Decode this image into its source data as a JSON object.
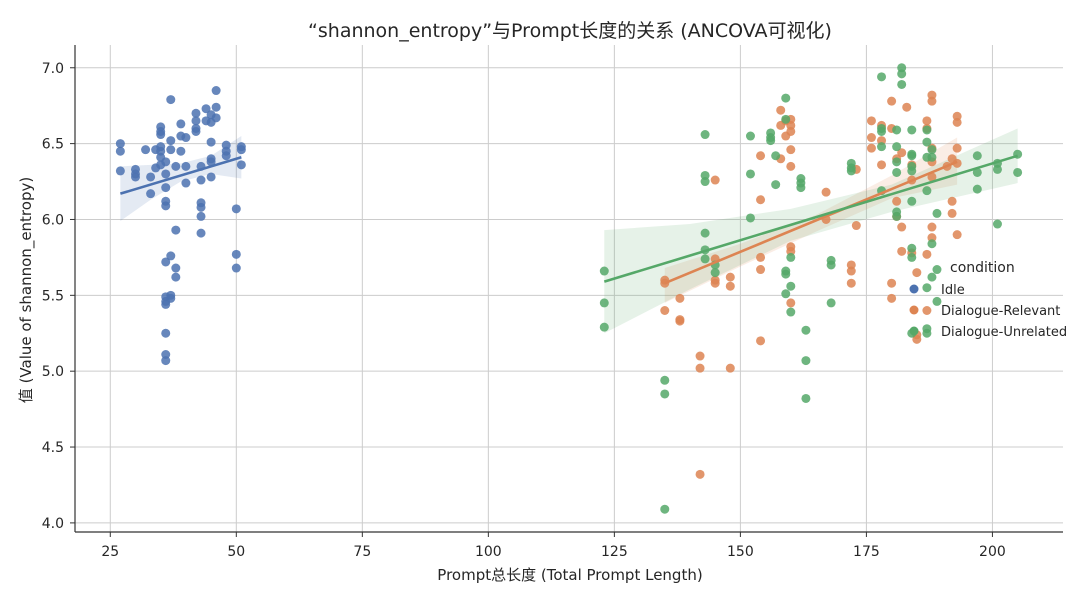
{
  "chart_data": {
    "type": "scatter",
    "title": "“shannon_entropy”与Prompt长度的关系 (ANCOVA可视化)",
    "xlabel": "Prompt总长度 (Total Prompt Length)",
    "ylabel": "值 (Value of shannon_entropy)",
    "xlim": [
      18,
      214
    ],
    "ylim": [
      3.94,
      7.15
    ],
    "x_ticks": [
      25,
      50,
      75,
      100,
      125,
      150,
      175,
      200
    ],
    "y_ticks": [
      4.0,
      4.5,
      5.0,
      5.5,
      6.0,
      6.5,
      7.0
    ],
    "grid": true,
    "legend": {
      "title": "condition",
      "placement": "center-right"
    },
    "series": [
      {
        "name": "Idle",
        "color": "#4c72b0",
        "fit": {
          "x": [
            27,
            51
          ],
          "y": [
            6.17,
            6.41
          ]
        },
        "ci": {
          "x": [
            27,
            33,
            39,
            45,
            51
          ],
          "upper": [
            6.35,
            6.36,
            6.37,
            6.42,
            6.55
          ],
          "lower": [
            5.99,
            6.13,
            6.25,
            6.3,
            6.27
          ]
        },
        "points": [
          [
            27,
            6.5
          ],
          [
            27,
            6.45
          ],
          [
            27,
            6.32
          ],
          [
            30,
            6.33
          ],
          [
            30,
            6.28
          ],
          [
            30,
            6.3
          ],
          [
            32,
            6.46
          ],
          [
            33,
            6.17
          ],
          [
            33,
            6.28
          ],
          [
            34,
            6.46
          ],
          [
            34,
            6.34
          ],
          [
            35,
            6.45
          ],
          [
            35,
            6.41
          ],
          [
            35,
            6.36
          ],
          [
            35,
            6.61
          ],
          [
            35,
            6.58
          ],
          [
            35,
            6.56
          ],
          [
            35,
            6.48
          ],
          [
            36,
            6.38
          ],
          [
            36,
            6.3
          ],
          [
            36,
            6.21
          ],
          [
            36,
            6.12
          ],
          [
            36,
            6.09
          ],
          [
            36,
            5.72
          ],
          [
            36,
            5.49
          ],
          [
            36,
            5.46
          ],
          [
            36,
            5.44
          ],
          [
            36,
            5.25
          ],
          [
            36,
            5.11
          ],
          [
            36,
            5.07
          ],
          [
            37,
            6.79
          ],
          [
            37,
            6.52
          ],
          [
            37,
            6.46
          ],
          [
            37,
            5.76
          ],
          [
            37,
            5.5
          ],
          [
            37,
            5.48
          ],
          [
            38,
            6.35
          ],
          [
            38,
            5.93
          ],
          [
            38,
            5.68
          ],
          [
            38,
            5.62
          ],
          [
            39,
            6.63
          ],
          [
            39,
            6.55
          ],
          [
            39,
            6.45
          ],
          [
            40,
            6.54
          ],
          [
            40,
            6.35
          ],
          [
            40,
            6.24
          ],
          [
            42,
            6.7
          ],
          [
            42,
            6.65
          ],
          [
            42,
            6.6
          ],
          [
            42,
            6.58
          ],
          [
            43,
            6.35
          ],
          [
            43,
            6.26
          ],
          [
            43,
            6.11
          ],
          [
            43,
            6.08
          ],
          [
            43,
            6.02
          ],
          [
            43,
            5.91
          ],
          [
            44,
            6.73
          ],
          [
            44,
            6.65
          ],
          [
            45,
            6.69
          ],
          [
            45,
            6.64
          ],
          [
            45,
            6.51
          ],
          [
            45,
            6.4
          ],
          [
            45,
            6.38
          ],
          [
            45,
            6.28
          ],
          [
            46,
            6.85
          ],
          [
            46,
            6.74
          ],
          [
            46,
            6.67
          ],
          [
            48,
            6.49
          ],
          [
            48,
            6.45
          ],
          [
            48,
            6.42
          ],
          [
            50,
            6.07
          ],
          [
            50,
            5.77
          ],
          [
            50,
            5.68
          ],
          [
            51,
            6.48
          ],
          [
            51,
            6.46
          ],
          [
            51,
            6.36
          ]
        ]
      },
      {
        "name": "Dialogue-Relevant",
        "color": "#dd8452",
        "fit": {
          "x": [
            135,
            193
          ],
          "y": [
            5.58,
            6.38
          ]
        },
        "ci": {
          "x": [
            135,
            150,
            165,
            180,
            193
          ],
          "upper": [
            5.68,
            5.84,
            6.03,
            6.29,
            6.54
          ],
          "lower": [
            5.45,
            5.69,
            5.92,
            6.14,
            6.23
          ]
        },
        "points": [
          [
            135,
            5.4
          ],
          [
            135,
            5.6
          ],
          [
            135,
            5.58
          ],
          [
            138,
            5.48
          ],
          [
            138,
            5.34
          ],
          [
            138,
            5.33
          ],
          [
            142,
            5.1
          ],
          [
            142,
            5.02
          ],
          [
            142,
            4.32
          ],
          [
            145,
            6.26
          ],
          [
            145,
            5.74
          ],
          [
            145,
            5.6
          ],
          [
            145,
            5.58
          ],
          [
            148,
            5.62
          ],
          [
            148,
            5.56
          ],
          [
            148,
            5.02
          ],
          [
            154,
            6.42
          ],
          [
            154,
            6.13
          ],
          [
            154,
            5.75
          ],
          [
            154,
            5.67
          ],
          [
            154,
            5.2
          ],
          [
            158,
            6.72
          ],
          [
            158,
            6.62
          ],
          [
            158,
            6.4
          ],
          [
            159,
            6.65
          ],
          [
            159,
            6.55
          ],
          [
            160,
            6.66
          ],
          [
            160,
            6.62
          ],
          [
            160,
            6.58
          ],
          [
            160,
            6.46
          ],
          [
            160,
            6.35
          ],
          [
            160,
            5.82
          ],
          [
            160,
            5.79
          ],
          [
            160,
            5.45
          ],
          [
            167,
            6.18
          ],
          [
            167,
            6.0
          ],
          [
            172,
            5.7
          ],
          [
            172,
            5.66
          ],
          [
            172,
            5.58
          ],
          [
            173,
            6.33
          ],
          [
            173,
            5.96
          ],
          [
            176,
            6.65
          ],
          [
            176,
            6.54
          ],
          [
            176,
            6.47
          ],
          [
            178,
            6.62
          ],
          [
            178,
            6.52
          ],
          [
            178,
            6.36
          ],
          [
            180,
            6.78
          ],
          [
            180,
            6.6
          ],
          [
            180,
            5.58
          ],
          [
            180,
            5.48
          ],
          [
            181,
            6.4
          ],
          [
            181,
            6.12
          ],
          [
            181,
            6.02
          ],
          [
            182,
            6.44
          ],
          [
            182,
            5.95
          ],
          [
            182,
            5.79
          ],
          [
            183,
            6.74
          ],
          [
            184,
            6.36
          ],
          [
            184,
            6.26
          ],
          [
            184,
            5.78
          ],
          [
            185,
            5.65
          ],
          [
            185,
            5.24
          ],
          [
            185,
            5.21
          ],
          [
            187,
            6.65
          ],
          [
            187,
            6.6
          ],
          [
            187,
            5.77
          ],
          [
            187,
            5.4
          ],
          [
            188,
            6.82
          ],
          [
            188,
            6.78
          ],
          [
            188,
            6.47
          ],
          [
            188,
            6.38
          ],
          [
            188,
            6.28
          ],
          [
            188,
            5.95
          ],
          [
            188,
            5.88
          ],
          [
            191,
            6.35
          ],
          [
            192,
            6.4
          ],
          [
            192,
            6.12
          ],
          [
            192,
            6.04
          ],
          [
            193,
            6.68
          ],
          [
            193,
            6.64
          ],
          [
            193,
            6.47
          ],
          [
            193,
            6.37
          ],
          [
            193,
            5.9
          ]
        ]
      },
      {
        "name": "Dialogue-Unrelated",
        "color": "#55a868",
        "fit": {
          "x": [
            123,
            205
          ],
          "y": [
            5.59,
            6.42
          ]
        },
        "ci": {
          "x": [
            123,
            140,
            160,
            180,
            205
          ],
          "upper": [
            5.93,
            5.97,
            6.07,
            6.23,
            6.6
          ],
          "lower": [
            5.25,
            5.54,
            5.86,
            6.05,
            6.24
          ]
        },
        "points": [
          [
            123,
            5.66
          ],
          [
            123,
            5.45
          ],
          [
            123,
            5.29
          ],
          [
            135,
            4.94
          ],
          [
            135,
            4.85
          ],
          [
            135,
            4.09
          ],
          [
            143,
            6.56
          ],
          [
            143,
            6.29
          ],
          [
            143,
            6.25
          ],
          [
            143,
            5.91
          ],
          [
            143,
            5.8
          ],
          [
            143,
            5.74
          ],
          [
            145,
            5.7
          ],
          [
            145,
            5.65
          ],
          [
            152,
            6.55
          ],
          [
            152,
            6.3
          ],
          [
            152,
            6.01
          ],
          [
            156,
            6.57
          ],
          [
            156,
            6.54
          ],
          [
            156,
            6.52
          ],
          [
            157,
            6.42
          ],
          [
            157,
            6.23
          ],
          [
            159,
            6.8
          ],
          [
            159,
            6.66
          ],
          [
            159,
            5.66
          ],
          [
            159,
            5.64
          ],
          [
            159,
            5.51
          ],
          [
            160,
            5.75
          ],
          [
            160,
            5.56
          ],
          [
            160,
            5.39
          ],
          [
            162,
            6.27
          ],
          [
            162,
            6.24
          ],
          [
            162,
            6.21
          ],
          [
            163,
            5.27
          ],
          [
            163,
            5.07
          ],
          [
            163,
            4.82
          ],
          [
            168,
            5.73
          ],
          [
            168,
            5.7
          ],
          [
            168,
            5.45
          ],
          [
            172,
            6.37
          ],
          [
            172,
            6.34
          ],
          [
            172,
            6.32
          ],
          [
            178,
            6.94
          ],
          [
            178,
            6.6
          ],
          [
            178,
            6.58
          ],
          [
            178,
            6.48
          ],
          [
            178,
            6.19
          ],
          [
            181,
            6.59
          ],
          [
            181,
            6.48
          ],
          [
            181,
            6.38
          ],
          [
            181,
            6.31
          ],
          [
            181,
            6.05
          ],
          [
            181,
            6.02
          ],
          [
            182,
            7.0
          ],
          [
            182,
            6.96
          ],
          [
            182,
            6.89
          ],
          [
            184,
            6.59
          ],
          [
            184,
            6.43
          ],
          [
            184,
            6.42
          ],
          [
            184,
            6.35
          ],
          [
            184,
            6.32
          ],
          [
            184,
            6.12
          ],
          [
            184,
            5.81
          ],
          [
            184,
            5.75
          ],
          [
            184,
            5.25
          ],
          [
            187,
            6.59
          ],
          [
            187,
            6.51
          ],
          [
            187,
            6.41
          ],
          [
            187,
            6.19
          ],
          [
            187,
            5.55
          ],
          [
            187,
            5.28
          ],
          [
            187,
            5.25
          ],
          [
            188,
            6.46
          ],
          [
            188,
            6.41
          ],
          [
            188,
            5.84
          ],
          [
            188,
            5.62
          ],
          [
            189,
            6.04
          ],
          [
            189,
            5.67
          ],
          [
            189,
            5.46
          ],
          [
            197,
            6.42
          ],
          [
            197,
            6.31
          ],
          [
            197,
            6.2
          ],
          [
            201,
            6.37
          ],
          [
            201,
            6.33
          ],
          [
            201,
            5.97
          ],
          [
            205,
            6.43
          ],
          [
            205,
            6.31
          ]
        ]
      }
    ]
  }
}
